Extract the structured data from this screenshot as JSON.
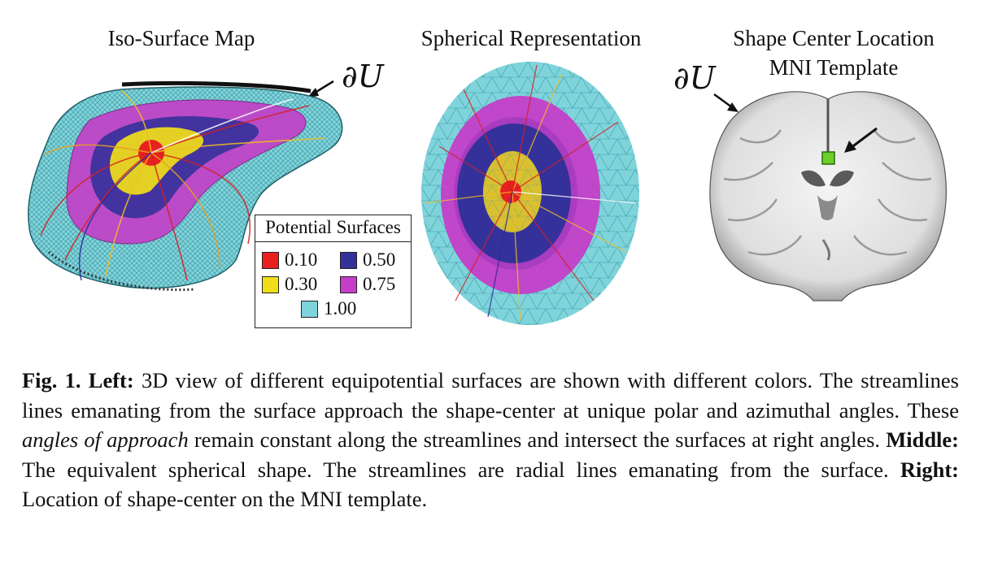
{
  "panels": {
    "left_title": "Iso-Surface Map",
    "middle_title": "Spherical Representation",
    "right_title_line1": "Shape Center Location",
    "right_title_line2": "MNI Template",
    "boundary_symbol": "∂U"
  },
  "legend": {
    "title": "Potential Surfaces",
    "items": [
      {
        "label": "0.10",
        "color": "#e8211f"
      },
      {
        "label": "0.50",
        "color": "#35319a"
      },
      {
        "label": "0.30",
        "color": "#f2dd1a"
      },
      {
        "label": "0.75",
        "color": "#c43ec8"
      },
      {
        "label": "1.00",
        "color": "#7fd4dc"
      }
    ]
  },
  "marker_color": "#6dcf2a",
  "caption": {
    "fig_label": "Fig. 1.",
    "left_label": "Left:",
    "text1": "3D view of different equipotential surfaces are shown with different colors. The streamlines lines emanating from the surface approach the shape-center at unique polar and azimuthal angles. These",
    "emph": "angles of approach",
    "text2": "remain constant along the streamlines and intersect the surfaces at right angles.",
    "middle_label": "Middle:",
    "text3": "The equivalent spherical shape. The streamlines are radial lines emanating from the surface.",
    "right_label": "Right:",
    "text4": "Location of shape-center on the MNI template."
  }
}
